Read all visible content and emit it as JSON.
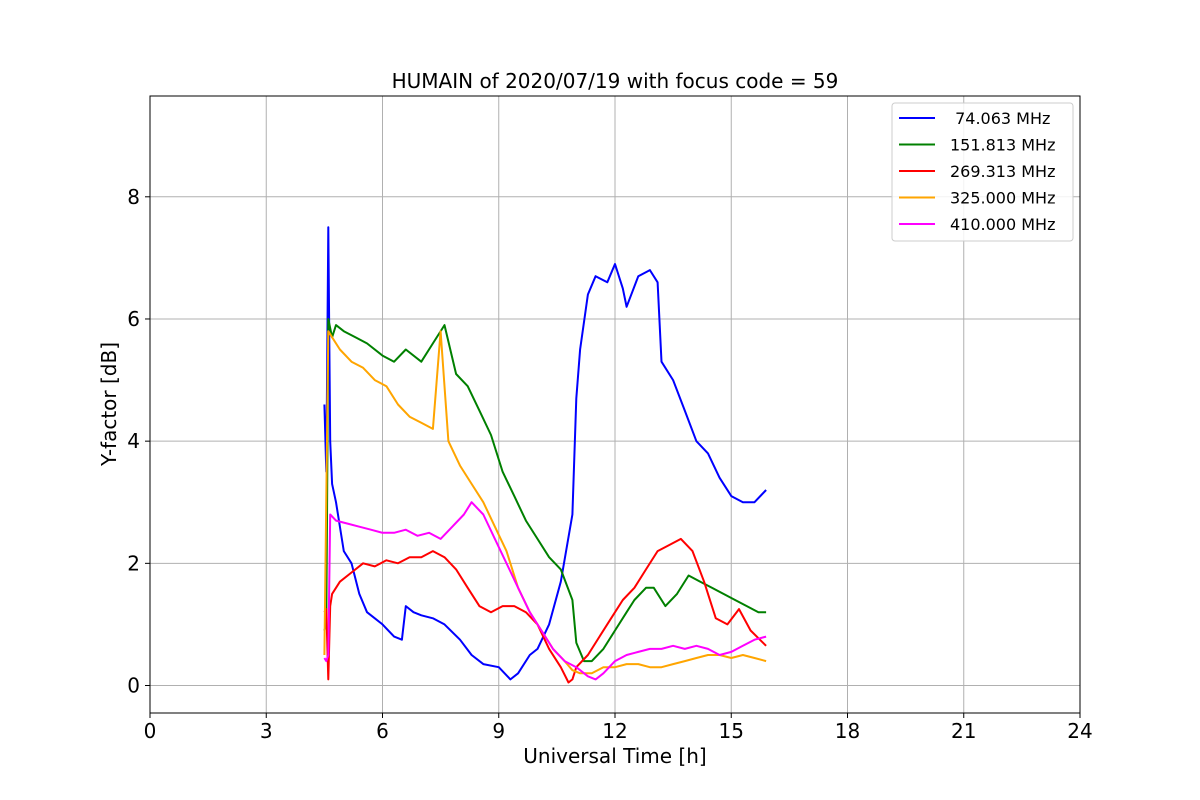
{
  "chart_data": {
    "type": "line",
    "title": "HUMAIN of 2020/07/19 with focus code = 59",
    "xlabel": "Universal Time [h]",
    "ylabel": "Y-factor [dB]",
    "xlim": [
      0,
      24
    ],
    "ylim": [
      -0.45,
      9.65
    ],
    "xticks": [
      0,
      3,
      6,
      9,
      12,
      15,
      18,
      21,
      24
    ],
    "yticks": [
      0,
      2,
      4,
      6,
      8
    ],
    "grid": true,
    "legend_position": "top-right",
    "series": [
      {
        "name": " 74.063 MHz",
        "color": "#0000ff",
        "x": [
          4.5,
          4.55,
          4.6,
          4.65,
          4.7,
          4.8,
          5.0,
          5.2,
          5.4,
          5.6,
          5.8,
          6.0,
          6.3,
          6.5,
          6.6,
          6.8,
          7.0,
          7.3,
          7.6,
          8.0,
          8.3,
          8.6,
          9.0,
          9.3,
          9.5,
          9.8,
          10.0,
          10.3,
          10.6,
          10.9,
          11.0,
          11.1,
          11.3,
          11.5,
          11.8,
          12.0,
          12.2,
          12.3,
          12.6,
          12.9,
          13.1,
          13.2,
          13.5,
          13.8,
          14.1,
          14.4,
          14.7,
          15.0,
          15.3,
          15.6,
          15.9
        ],
        "y": [
          4.6,
          3.5,
          7.5,
          4.0,
          3.3,
          3.0,
          2.2,
          2.0,
          1.5,
          1.2,
          1.1,
          1.0,
          0.8,
          0.75,
          1.3,
          1.2,
          1.15,
          1.1,
          1.0,
          0.75,
          0.5,
          0.35,
          0.3,
          0.1,
          0.2,
          0.5,
          0.6,
          1.0,
          1.7,
          2.8,
          4.7,
          5.5,
          6.4,
          6.7,
          6.6,
          6.9,
          6.5,
          6.2,
          6.7,
          6.8,
          6.6,
          5.3,
          5.0,
          4.5,
          4.0,
          3.8,
          3.4,
          3.1,
          3.0,
          3.0,
          3.2
        ]
      },
      {
        "name": "151.813 MHz",
        "color": "#008000",
        "x": [
          4.5,
          4.55,
          4.6,
          4.7,
          4.8,
          5.0,
          5.3,
          5.6,
          6.0,
          6.3,
          6.6,
          7.0,
          7.3,
          7.6,
          7.9,
          8.2,
          8.5,
          8.8,
          9.1,
          9.4,
          9.7,
          10.0,
          10.3,
          10.6,
          10.9,
          11.0,
          11.2,
          11.4,
          11.7,
          12.0,
          12.3,
          12.5,
          12.8,
          13.0,
          13.3,
          13.6,
          13.9,
          14.2,
          14.5,
          14.8,
          15.1,
          15.4,
          15.7,
          15.9
        ],
        "y": [
          0.9,
          1.0,
          6.0,
          5.7,
          5.9,
          5.8,
          5.7,
          5.6,
          5.4,
          5.3,
          5.5,
          5.3,
          5.6,
          5.9,
          5.1,
          4.9,
          4.5,
          4.1,
          3.5,
          3.1,
          2.7,
          2.4,
          2.1,
          1.9,
          1.4,
          0.7,
          0.4,
          0.4,
          0.6,
          0.9,
          1.2,
          1.4,
          1.6,
          1.6,
          1.3,
          1.5,
          1.8,
          1.7,
          1.6,
          1.5,
          1.4,
          1.3,
          1.2,
          1.2
        ]
      },
      {
        "name": "269.313 MHz",
        "color": "#ff0000",
        "x": [
          4.5,
          4.55,
          4.6,
          4.65,
          4.7,
          4.9,
          5.2,
          5.5,
          5.8,
          6.1,
          6.4,
          6.7,
          7.0,
          7.3,
          7.6,
          7.9,
          8.2,
          8.5,
          8.8,
          9.1,
          9.4,
          9.7,
          10.0,
          10.3,
          10.6,
          10.8,
          10.9,
          11.0,
          11.3,
          11.6,
          11.9,
          12.2,
          12.5,
          12.8,
          13.1,
          13.4,
          13.7,
          14.0,
          14.3,
          14.6,
          14.9,
          15.2,
          15.5,
          15.9
        ],
        "y": [
          1.2,
          1.25,
          0.1,
          1.3,
          1.5,
          1.7,
          1.85,
          2.0,
          1.95,
          2.05,
          2.0,
          2.1,
          2.1,
          2.2,
          2.1,
          1.9,
          1.6,
          1.3,
          1.2,
          1.3,
          1.3,
          1.2,
          1.0,
          0.6,
          0.3,
          0.05,
          0.1,
          0.3,
          0.5,
          0.8,
          1.1,
          1.4,
          1.6,
          1.9,
          2.2,
          2.3,
          2.4,
          2.2,
          1.7,
          1.1,
          1.0,
          1.25,
          0.9,
          0.65
        ]
      },
      {
        "name": "325.000 MHz",
        "color": "#ffa500",
        "x": [
          4.5,
          4.6,
          4.7,
          4.9,
          5.2,
          5.5,
          5.8,
          6.1,
          6.4,
          6.7,
          7.0,
          7.3,
          7.5,
          7.7,
          8.0,
          8.3,
          8.6,
          8.9,
          9.2,
          9.5,
          9.8,
          10.1,
          10.4,
          10.7,
          10.9,
          11.1,
          11.4,
          11.7,
          12.0,
          12.3,
          12.6,
          12.9,
          13.2,
          13.5,
          13.8,
          14.1,
          14.4,
          14.7,
          15.0,
          15.3,
          15.6,
          15.9
        ],
        "y": [
          0.5,
          5.8,
          5.7,
          5.5,
          5.3,
          5.2,
          5.0,
          4.9,
          4.6,
          4.4,
          4.3,
          4.2,
          5.8,
          4.0,
          3.6,
          3.3,
          3.0,
          2.6,
          2.2,
          1.6,
          1.2,
          0.9,
          0.6,
          0.4,
          0.25,
          0.2,
          0.2,
          0.3,
          0.3,
          0.35,
          0.35,
          0.3,
          0.3,
          0.35,
          0.4,
          0.45,
          0.5,
          0.5,
          0.45,
          0.5,
          0.45,
          0.4
        ]
      },
      {
        "name": "410.000 MHz",
        "color": "#ff00ff",
        "x": [
          4.5,
          4.55,
          4.6,
          4.65,
          4.8,
          5.1,
          5.4,
          5.7,
          6.0,
          6.3,
          6.6,
          6.9,
          7.2,
          7.5,
          7.8,
          8.1,
          8.3,
          8.6,
          8.9,
          9.2,
          9.5,
          9.8,
          10.1,
          10.4,
          10.7,
          11.0,
          11.3,
          11.5,
          11.7,
          12.0,
          12.3,
          12.6,
          12.9,
          13.2,
          13.5,
          13.8,
          14.1,
          14.4,
          14.7,
          15.0,
          15.3,
          15.6,
          15.9
        ],
        "y": [
          0.45,
          0.4,
          0.5,
          2.8,
          2.7,
          2.65,
          2.6,
          2.55,
          2.5,
          2.5,
          2.55,
          2.45,
          2.5,
          2.4,
          2.6,
          2.8,
          3.0,
          2.8,
          2.4,
          2.0,
          1.6,
          1.2,
          0.9,
          0.6,
          0.4,
          0.3,
          0.15,
          0.1,
          0.2,
          0.4,
          0.5,
          0.55,
          0.6,
          0.6,
          0.65,
          0.6,
          0.65,
          0.6,
          0.5,
          0.55,
          0.65,
          0.75,
          0.8
        ]
      }
    ]
  }
}
